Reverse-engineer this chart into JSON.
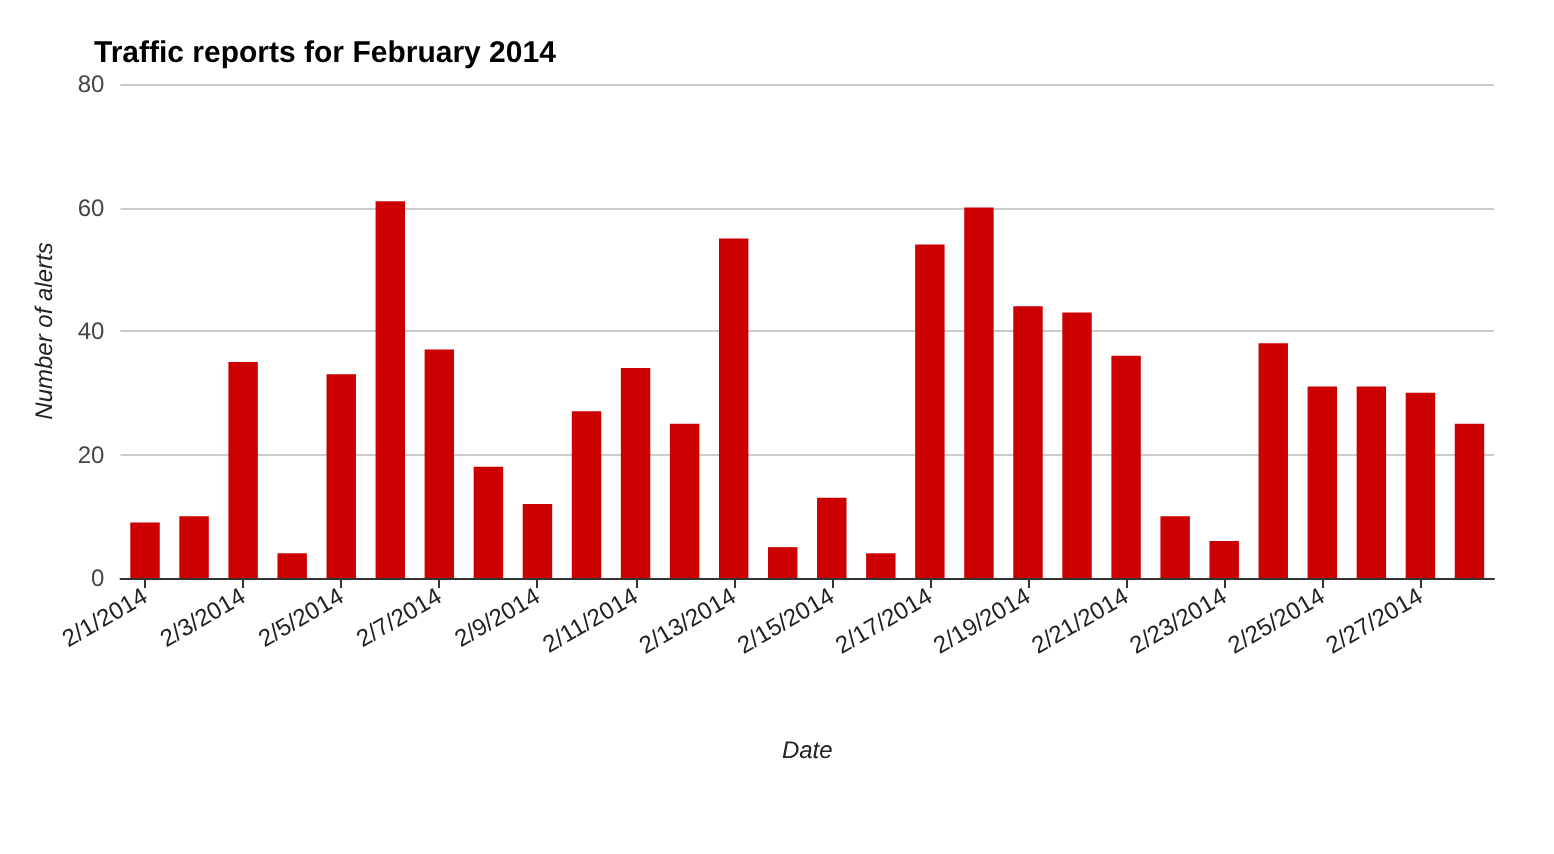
{
  "chart_data": {
    "type": "bar",
    "title": "Traffic reports for February 2014",
    "xlabel": "Date",
    "ylabel": "Number of alerts",
    "categories": [
      "2/1/2014",
      null,
      "2/3/2014",
      null,
      "2/5/2014",
      null,
      "2/7/2014",
      null,
      "2/9/2014",
      null,
      "2/11/2014",
      null,
      "2/13/2014",
      null,
      "2/15/2014",
      null,
      "2/17/2014",
      null,
      "2/19/2014",
      null,
      "2/21/2014",
      null,
      "2/23/2014",
      null,
      "2/25/2014",
      null,
      "2/27/2014",
      null
    ],
    "values": [
      9,
      10,
      35,
      4,
      33,
      61,
      37,
      18,
      12,
      27,
      34,
      25,
      55,
      5,
      13,
      4,
      54,
      60,
      44,
      43,
      36,
      10,
      6,
      38,
      31,
      31,
      30,
      25
    ],
    "color": "#cc0000",
    "ylim": [
      0,
      80
    ],
    "yticks": [
      0,
      20,
      40,
      60,
      80
    ],
    "grid": "y"
  }
}
